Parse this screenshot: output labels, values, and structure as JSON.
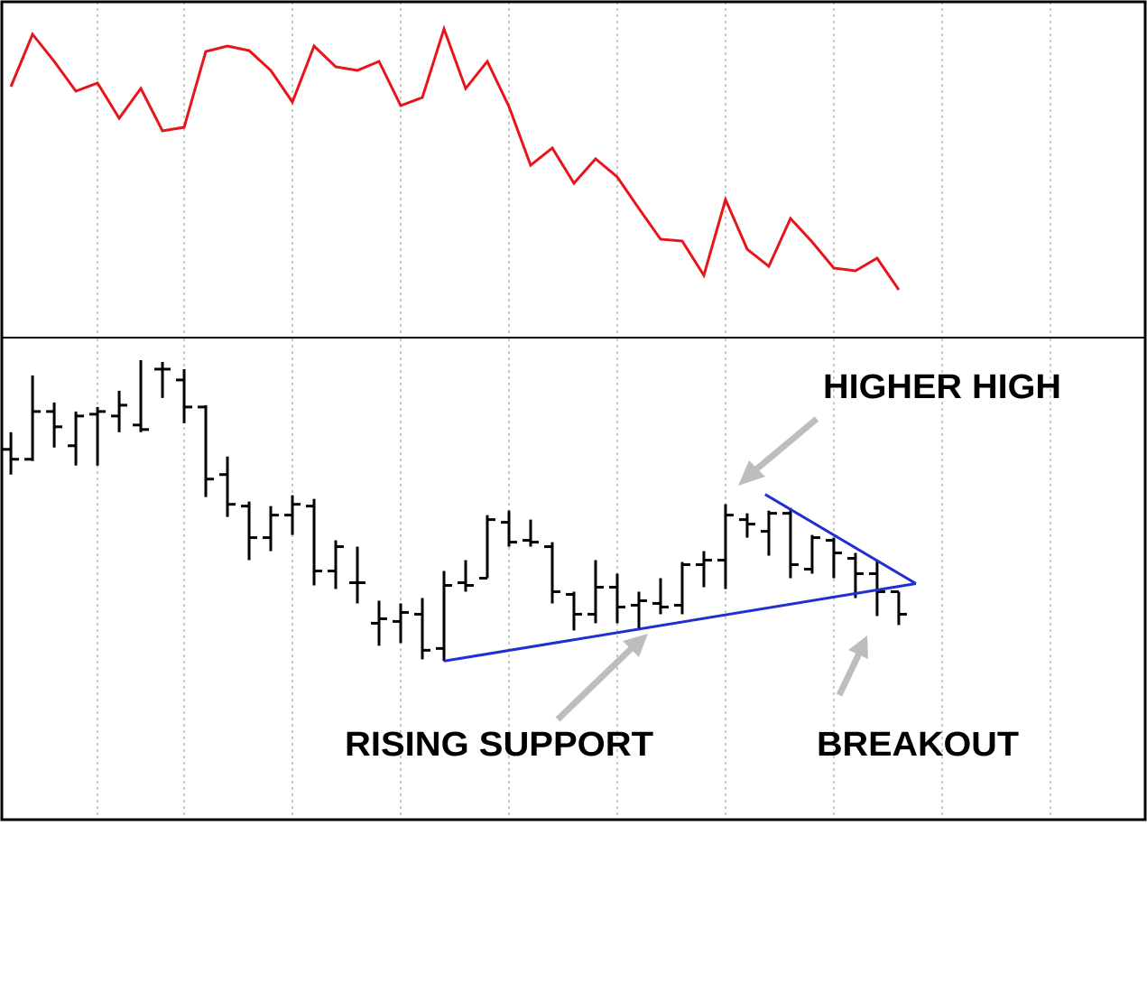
{
  "chart_data": [
    {
      "type": "line",
      "ylim": [
        0,
        371
      ],
      "xlim": [
        -0.42,
        52.38
      ],
      "xticks": [
        4,
        8,
        13,
        18,
        23,
        28,
        33,
        38,
        43,
        48
      ],
      "grid": true,
      "series": [
        {
          "color": "#e8141b",
          "values": [
            277,
            335,
            305,
            272,
            281,
            242,
            275,
            228,
            232,
            316,
            322,
            317,
            295,
            260,
            322,
            299,
            295,
            305,
            256,
            265,
            341,
            275,
            305,
            255,
            190,
            209,
            170,
            197,
            177,
            142,
            108,
            106,
            68,
            152,
            97,
            78,
            131,
            105,
            76,
            73,
            87,
            52
          ]
        }
      ]
    },
    {
      "type": "ohlc",
      "ylim": [
        0,
        534
      ],
      "xlim": [
        -0.42,
        52.38
      ],
      "xticks": [
        4,
        8,
        13,
        18,
        23,
        28,
        33,
        38,
        43,
        48
      ],
      "grid": true,
      "color": "#000000",
      "open": [
        411,
        400,
        453,
        415,
        450,
        448,
        438,
        500,
        488,
        458,
        383,
        348,
        313,
        338,
        348,
        276,
        263,
        218,
        220,
        228,
        190,
        263,
        268,
        330,
        310,
        303,
        250,
        228,
        258,
        238,
        240,
        238,
        283,
        288,
        333,
        320,
        340,
        278,
        310,
        290,
        273,
        253
      ],
      "high": [
        430,
        493,
        463,
        453,
        458,
        476,
        510,
        508,
        500,
        460,
        403,
        353,
        348,
        360,
        356,
        310,
        303,
        243,
        240,
        246,
        276,
        288,
        338,
        343,
        333,
        308,
        253,
        288,
        273,
        253,
        268,
        286,
        298,
        350,
        340,
        343,
        346,
        316,
        313,
        296,
        288,
        253
      ],
      "low": [
        383,
        398,
        413,
        393,
        393,
        430,
        430,
        468,
        440,
        358,
        336,
        288,
        298,
        316,
        260,
        256,
        240,
        193,
        196,
        178,
        176,
        253,
        268,
        303,
        303,
        240,
        210,
        218,
        218,
        210,
        228,
        228,
        258,
        256,
        313,
        293,
        268,
        273,
        268,
        246,
        226,
        216
      ],
      "close": [
        400,
        453,
        436,
        448,
        453,
        460,
        433,
        500,
        458,
        378,
        350,
        313,
        338,
        350,
        276,
        303,
        263,
        223,
        230,
        188,
        260,
        260,
        333,
        308,
        308,
        253,
        228,
        258,
        236,
        243,
        236,
        283,
        288,
        338,
        328,
        340,
        283,
        313,
        296,
        273,
        253,
        228
      ],
      "trendlines": [
        {
          "color": "#1f2fd0",
          "x": [
            20,
            41.79
          ],
          "y": [
            176,
            262
          ]
        },
        {
          "color": "#1f2fd0",
          "x": [
            34.83,
            41.79
          ],
          "y": [
            361,
            262
          ]
        }
      ],
      "annotations": [
        "HIGHER HIGH",
        "RISING SUPPORT",
        "BREAKOUT"
      ]
    }
  ]
}
